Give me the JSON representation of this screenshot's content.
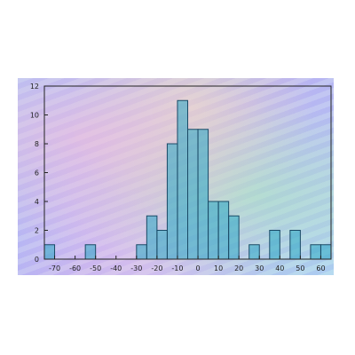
{
  "chart_data": {
    "type": "bar",
    "title": "",
    "xlabel": "",
    "ylabel": "",
    "ylim": [
      0,
      12
    ],
    "xlim": [
      -75,
      65
    ],
    "bin_width": 5,
    "bar_color": "#2aa8c4",
    "bar_edge_color": "#1a4a66",
    "x_ticks": [
      -70,
      -60,
      -50,
      -40,
      -30,
      -20,
      -10,
      0,
      10,
      20,
      30,
      40,
      50,
      60
    ],
    "y_ticks": [
      0,
      2,
      4,
      6,
      8,
      10,
      12
    ],
    "bins": [
      {
        "start": -75,
        "count": 1
      },
      {
        "start": -55,
        "count": 1
      },
      {
        "start": -30,
        "count": 1
      },
      {
        "start": -25,
        "count": 3
      },
      {
        "start": -20,
        "count": 2
      },
      {
        "start": -15,
        "count": 8
      },
      {
        "start": -10,
        "count": 11
      },
      {
        "start": -5,
        "count": 9
      },
      {
        "start": 0,
        "count": 9
      },
      {
        "start": 5,
        "count": 4
      },
      {
        "start": 10,
        "count": 4
      },
      {
        "start": 15,
        "count": 3
      },
      {
        "start": 25,
        "count": 1
      },
      {
        "start": 35,
        "count": 2
      },
      {
        "start": 45,
        "count": 2
      },
      {
        "start": 55,
        "count": 1
      },
      {
        "start": 60,
        "count": 1
      }
    ]
  }
}
